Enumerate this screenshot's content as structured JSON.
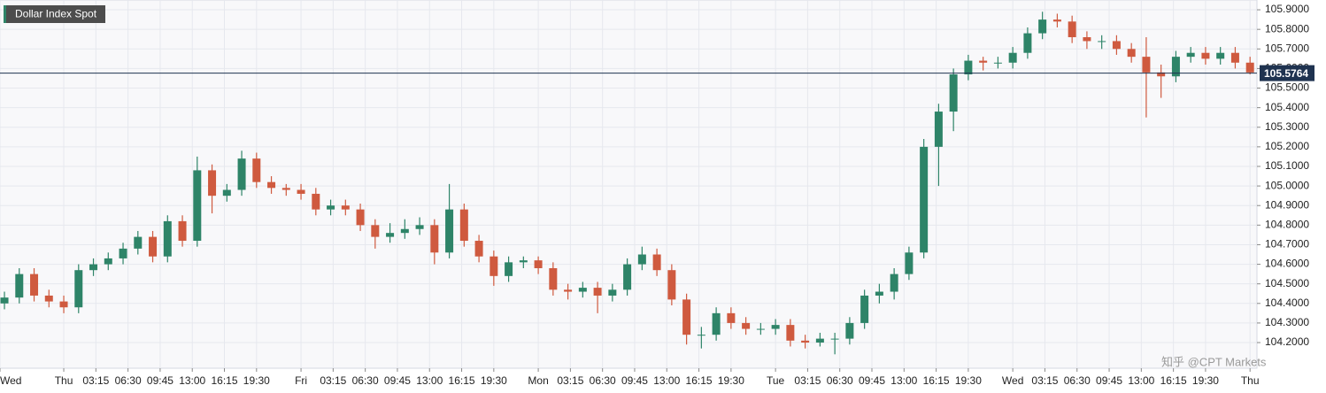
{
  "chart_data": {
    "type": "candlestick",
    "title": "Dollar Index Spot",
    "watermark": "知乎 @CPT Markets",
    "x": [
      -6,
      -4.5,
      -3,
      -1.5,
      0,
      1.5,
      3,
      4.5,
      6,
      7.5,
      9,
      10.5,
      12,
      13.5,
      15,
      16.5,
      18,
      19.5,
      21,
      22.5,
      24,
      25.5,
      27,
      28.5,
      30,
      31.5,
      33,
      34.5,
      36,
      37.5,
      39,
      40.5,
      42,
      43.5,
      45,
      46.5,
      48,
      49.5,
      51,
      52.5,
      54,
      55.5,
      57,
      58.5,
      60,
      61.5,
      63,
      64.5,
      66,
      67.5,
      69,
      70.5,
      72,
      73.5,
      75,
      76.5,
      78,
      79.5,
      81,
      82.5,
      84,
      85.5,
      87,
      88.5,
      90,
      91.5,
      93,
      94.5,
      96,
      97.5,
      99,
      100.5,
      102,
      103.5,
      105,
      106.5,
      108,
      109.5,
      111,
      112.5,
      114,
      115.5,
      117,
      118.5,
      120
    ],
    "open": [
      104.4,
      104.43,
      104.55,
      104.44,
      104.41,
      104.38,
      104.57,
      104.6,
      104.63,
      104.68,
      104.74,
      104.64,
      104.82,
      104.72,
      105.08,
      104.95,
      104.98,
      105.14,
      105.02,
      104.99,
      104.98,
      104.96,
      104.88,
      104.9,
      104.88,
      104.8,
      104.74,
      104.76,
      104.78,
      104.8,
      104.66,
      104.88,
      104.72,
      104.64,
      104.54,
      104.61,
      104.62,
      104.58,
      104.47,
      104.46,
      104.48,
      104.44,
      104.47,
      104.6,
      104.65,
      104.57,
      104.42,
      104.24,
      104.24,
      104.35,
      104.3,
      104.27,
      104.27,
      104.29,
      104.21,
      104.2,
      104.22,
      104.22,
      104.3,
      104.44,
      104.46,
      104.55,
      104.66,
      105.2,
      105.38,
      105.57,
      105.64,
      105.63,
      105.63,
      105.68,
      105.78,
      105.85,
      105.84,
      105.76,
      105.74,
      105.74,
      105.7,
      105.66,
      105.58,
      105.56,
      105.66,
      105.68,
      105.65,
      105.68,
      105.63
    ],
    "high": [
      104.46,
      104.58,
      104.58,
      104.47,
      104.44,
      104.6,
      104.63,
      104.66,
      104.71,
      104.77,
      104.77,
      104.85,
      104.85,
      105.15,
      105.11,
      105.01,
      105.18,
      105.17,
      105.05,
      105.01,
      105.01,
      104.99,
      104.93,
      104.93,
      104.91,
      104.83,
      104.81,
      104.83,
      104.84,
      104.83,
      105.01,
      104.91,
      104.75,
      104.67,
      104.64,
      104.64,
      104.64,
      104.61,
      104.5,
      104.51,
      104.51,
      104.5,
      104.63,
      104.69,
      104.68,
      104.6,
      104.45,
      104.28,
      104.38,
      104.38,
      104.33,
      104.3,
      104.32,
      104.32,
      104.24,
      104.25,
      104.25,
      104.33,
      104.47,
      104.5,
      104.58,
      104.69,
      105.24,
      105.42,
      105.6,
      105.67,
      105.66,
      105.66,
      105.71,
      105.81,
      105.89,
      105.88,
      105.87,
      105.79,
      105.77,
      105.77,
      105.73,
      105.76,
      105.62,
      105.69,
      105.71,
      105.71,
      105.71,
      105.71,
      105.66
    ],
    "low": [
      104.37,
      104.4,
      104.41,
      104.38,
      104.35,
      104.35,
      104.54,
      104.57,
      104.6,
      104.65,
      104.61,
      104.61,
      104.69,
      104.69,
      104.86,
      104.92,
      104.95,
      104.99,
      104.96,
      104.95,
      104.93,
      104.85,
      104.85,
      104.85,
      104.77,
      104.68,
      104.71,
      104.73,
      104.75,
      104.6,
      104.63,
      104.69,
      104.61,
      104.49,
      104.51,
      104.58,
      104.55,
      104.44,
      104.42,
      104.43,
      104.35,
      104.41,
      104.44,
      104.57,
      104.54,
      104.39,
      104.19,
      104.17,
      104.21,
      104.27,
      104.24,
      104.24,
      104.24,
      104.18,
      104.17,
      104.18,
      104.14,
      104.19,
      104.27,
      104.4,
      104.42,
      104.52,
      104.63,
      105.0,
      105.28,
      105.54,
      105.59,
      105.6,
      105.6,
      105.65,
      105.75,
      105.81,
      105.73,
      105.7,
      105.7,
      105.67,
      105.63,
      105.35,
      105.45,
      105.53,
      105.63,
      105.62,
      105.62,
      105.6,
      105.57
    ],
    "close": [
      104.43,
      104.55,
      104.44,
      104.41,
      104.38,
      104.57,
      104.6,
      104.63,
      104.68,
      104.74,
      104.64,
      104.82,
      104.72,
      105.08,
      104.95,
      104.98,
      105.14,
      105.02,
      104.99,
      104.98,
      104.96,
      104.88,
      104.9,
      104.88,
      104.8,
      104.74,
      104.76,
      104.78,
      104.8,
      104.66,
      104.88,
      104.72,
      104.64,
      104.54,
      104.61,
      104.62,
      104.58,
      104.47,
      104.46,
      104.48,
      104.44,
      104.47,
      104.6,
      104.65,
      104.57,
      104.42,
      104.24,
      104.24,
      104.35,
      104.3,
      104.27,
      104.27,
      104.29,
      104.21,
      104.2,
      104.22,
      104.22,
      104.3,
      104.44,
      104.46,
      104.55,
      104.66,
      105.2,
      105.38,
      105.57,
      105.64,
      105.63,
      105.63,
      105.68,
      105.78,
      105.85,
      105.84,
      105.76,
      105.74,
      105.74,
      105.7,
      105.66,
      105.58,
      105.56,
      105.66,
      105.68,
      105.65,
      105.68,
      105.63,
      105.58
    ],
    "up_color": "#2e8468",
    "down_color": "#cf5a3f",
    "last_price": 105.5764,
    "last_price_color": "#1f3350",
    "xlim": [
      -6.45,
      120.7
    ],
    "ylim": [
      104.069,
      105.95
    ],
    "xticks": [
      {
        "value": -6.45,
        "label": "Wed"
      },
      {
        "value": 0,
        "label": "Thu"
      },
      {
        "value": 3.25,
        "label": "03:15"
      },
      {
        "value": 6.5,
        "label": "06:30"
      },
      {
        "value": 9.75,
        "label": "09:45"
      },
      {
        "value": 13,
        "label": "13:00"
      },
      {
        "value": 16.25,
        "label": "16:15"
      },
      {
        "value": 19.5,
        "label": "19:30"
      },
      {
        "value": 24,
        "label": "Fri"
      },
      {
        "value": 27.25,
        "label": "03:15"
      },
      {
        "value": 30.5,
        "label": "06:30"
      },
      {
        "value": 33.75,
        "label": "09:45"
      },
      {
        "value": 37,
        "label": "13:00"
      },
      {
        "value": 40.25,
        "label": "16:15"
      },
      {
        "value": 43.5,
        "label": "19:30"
      },
      {
        "value": 48,
        "label": "Mon"
      },
      {
        "value": 51.25,
        "label": "03:15"
      },
      {
        "value": 54.5,
        "label": "06:30"
      },
      {
        "value": 57.75,
        "label": "09:45"
      },
      {
        "value": 61,
        "label": "13:00"
      },
      {
        "value": 64.25,
        "label": "16:15"
      },
      {
        "value": 67.5,
        "label": "19:30"
      },
      {
        "value": 72,
        "label": "Tue"
      },
      {
        "value": 75.25,
        "label": "03:15"
      },
      {
        "value": 78.5,
        "label": "06:30"
      },
      {
        "value": 81.75,
        "label": "09:45"
      },
      {
        "value": 85,
        "label": "13:00"
      },
      {
        "value": 88.25,
        "label": "16:15"
      },
      {
        "value": 91.5,
        "label": "19:30"
      },
      {
        "value": 96,
        "label": "Wed"
      },
      {
        "value": 99.25,
        "label": "03:15"
      },
      {
        "value": 102.5,
        "label": "06:30"
      },
      {
        "value": 105.75,
        "label": "09:45"
      },
      {
        "value": 109,
        "label": "13:00"
      },
      {
        "value": 112.25,
        "label": "16:15"
      },
      {
        "value": 115.5,
        "label": "19:30"
      },
      {
        "value": 120,
        "label": "Thu"
      }
    ],
    "yticks": [
      {
        "value": 104.2,
        "label": "104.2000"
      },
      {
        "value": 104.3,
        "label": "104.3000"
      },
      {
        "value": 104.4,
        "label": "104.4000"
      },
      {
        "value": 104.5,
        "label": "104.5000"
      },
      {
        "value": 104.6,
        "label": "104.6000"
      },
      {
        "value": 104.7,
        "label": "104.7000"
      },
      {
        "value": 104.8,
        "label": "104.8000"
      },
      {
        "value": 104.9,
        "label": "104.9000"
      },
      {
        "value": 105.0,
        "label": "105.0000"
      },
      {
        "value": 105.1,
        "label": "105.1000"
      },
      {
        "value": 105.2,
        "label": "105.2000"
      },
      {
        "value": 105.3,
        "label": "105.3000"
      },
      {
        "value": 105.4,
        "label": "105.4000"
      },
      {
        "value": 105.5,
        "label": "105.5000"
      },
      {
        "value": 105.6,
        "label": "105.6000"
      },
      {
        "value": 105.7,
        "label": "105.7000"
      },
      {
        "value": 105.8,
        "label": "105.8000"
      },
      {
        "value": 105.9,
        "label": "105.9000"
      }
    ],
    "grid": true
  }
}
